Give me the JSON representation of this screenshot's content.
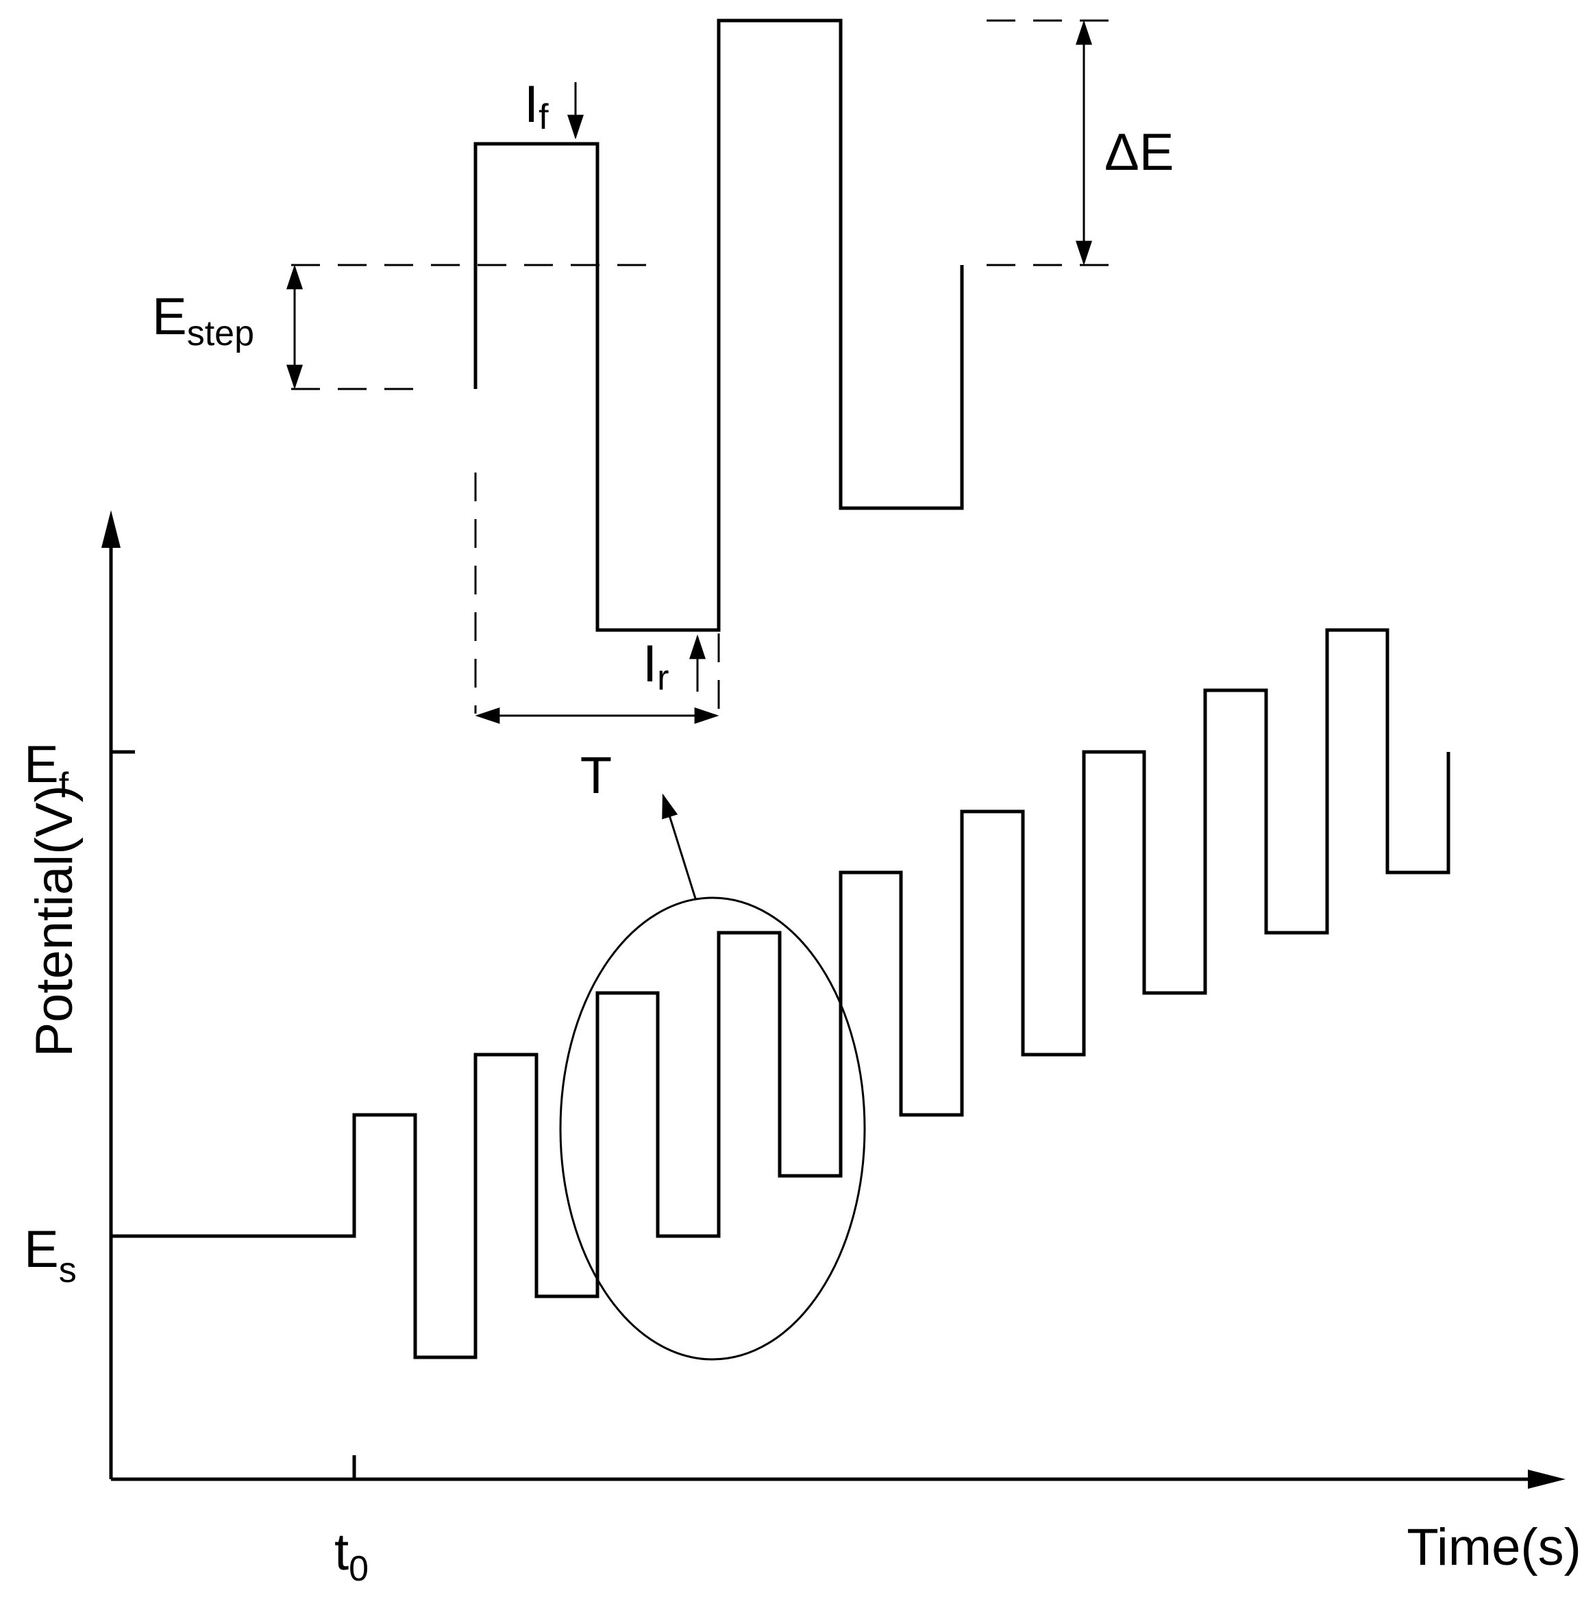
{
  "colors": {
    "stroke": "#000000",
    "background": "#ffffff"
  },
  "axes": {
    "y_label": "Potential(V)",
    "x_label": "Time(s)",
    "y_ticks": [
      {
        "main": "E",
        "sub": "f"
      },
      {
        "main": "E",
        "sub": "s"
      }
    ],
    "x_ticks": [
      {
        "main": "t",
        "sub": "0"
      }
    ]
  },
  "annotations": {
    "i_forward": {
      "main": "I",
      "sub": "f"
    },
    "i_reverse": {
      "main": "I",
      "sub": "r"
    },
    "e_step": {
      "main": "E",
      "sub": "step"
    },
    "delta_e": "ΔE",
    "period": "T"
  }
}
